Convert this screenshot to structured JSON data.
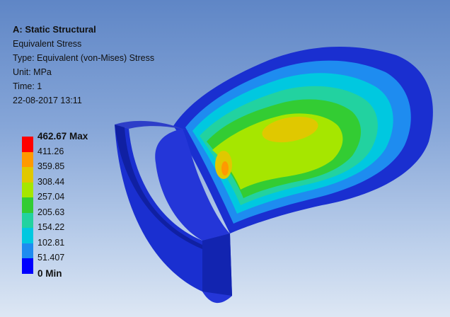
{
  "analysis": {
    "title": "A: Static Structural",
    "result_name": "Equivalent Stress",
    "type_line": "Type: Equivalent (von-Mises) Stress",
    "unit_line": "Unit: MPa",
    "time_line": "Time: 1",
    "timestamp": "22-08-2017 13:11"
  },
  "legend": {
    "labels": [
      "462.67 Max",
      "411.26",
      "359.85",
      "308.44",
      "257.04",
      "205.63",
      "154.22",
      "102.81",
      "51.407",
      "0 Min"
    ],
    "colors": [
      "#ff0000",
      "#ff9900",
      "#e0c800",
      "#a6e600",
      "#33cc33",
      "#22d2a0",
      "#00c8e0",
      "#1e8cf0",
      "#0000ff"
    ]
  },
  "model": {
    "contour_colors": {
      "min": "#1a2fd0",
      "blue": "#1e8cf0",
      "cyan": "#00c8e0",
      "teal": "#22d2a0",
      "green": "#33cc33",
      "yellow_green": "#a6e600",
      "yellow": "#e0c800",
      "orange": "#ff9900"
    }
  }
}
